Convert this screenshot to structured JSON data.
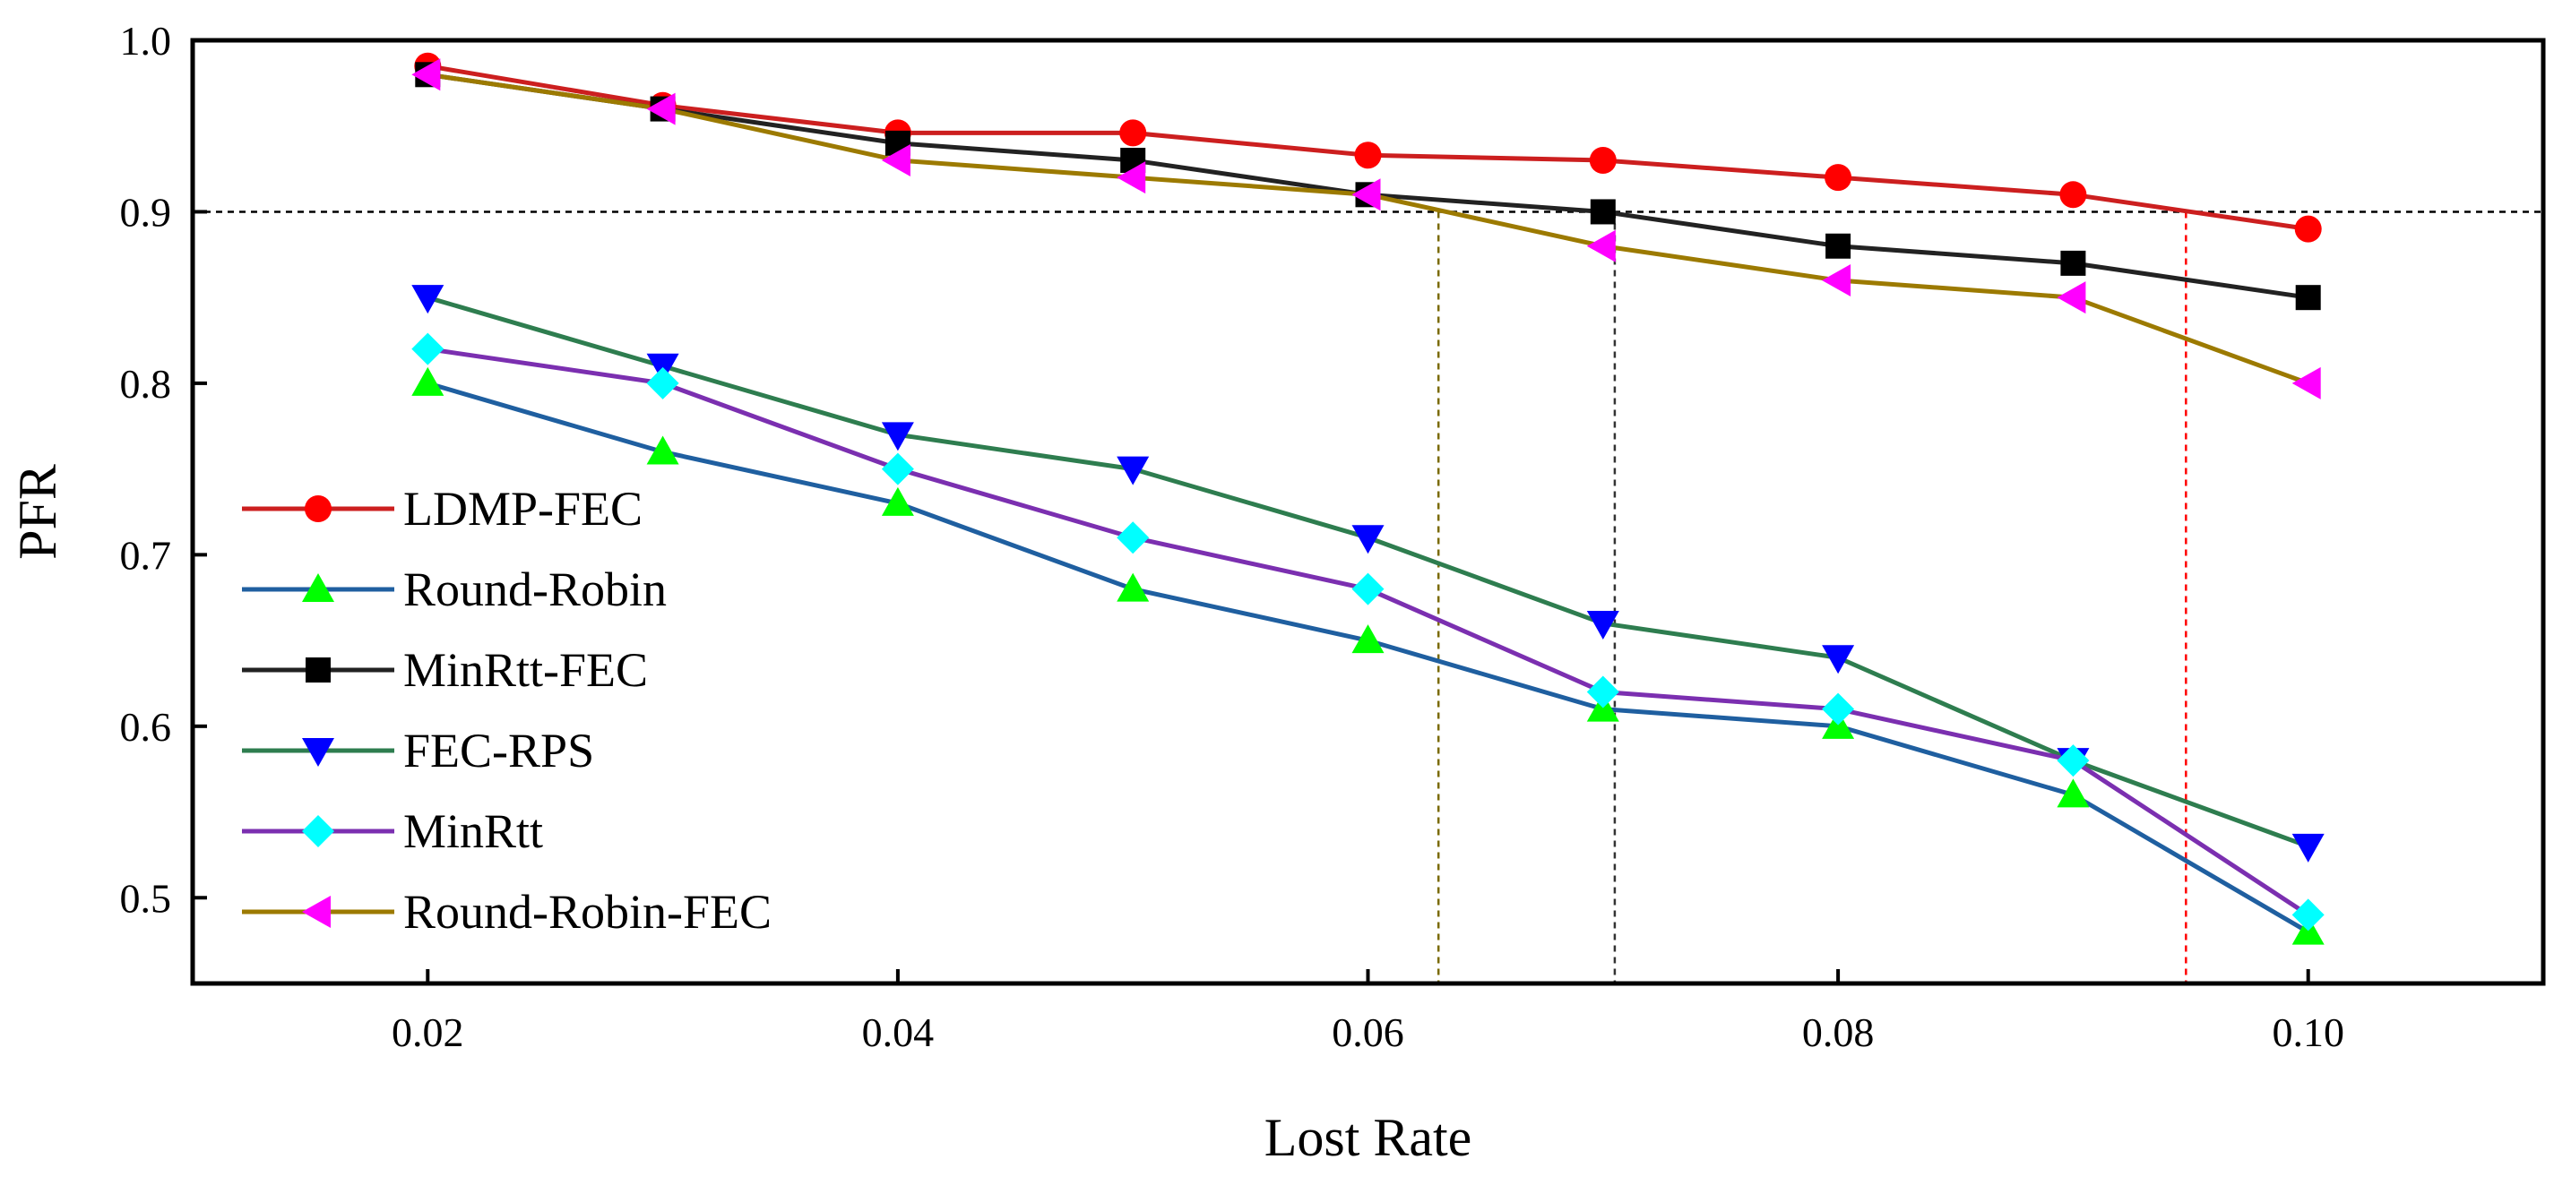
{
  "chart_data": {
    "type": "line",
    "title": "",
    "xlabel": "Lost Rate",
    "ylabel": "PFR",
    "xlim": [
      0.01,
      0.11
    ],
    "ylim": [
      0.45,
      1.0
    ],
    "x": [
      0.02,
      0.03,
      0.04,
      0.05,
      0.06,
      0.07,
      0.08,
      0.09,
      0.1
    ],
    "x_ticks": [
      0.02,
      0.04,
      0.06,
      0.08,
      0.1
    ],
    "x_tick_labels": [
      "0.02",
      "0.04",
      "0.06",
      "0.08",
      "0.10"
    ],
    "y_ticks": [
      0.5,
      0.6,
      0.7,
      0.8,
      0.9,
      1.0
    ],
    "y_tick_labels": [
      "0.5",
      "0.6",
      "0.7",
      "0.8",
      "0.9",
      "1.0"
    ],
    "grid": false,
    "legend_position": "bottom-left",
    "series": [
      {
        "name": "LDMP-FEC",
        "line_color": "#cc1f1f",
        "marker_color": "#ff0000",
        "marker": "circle",
        "values": [
          0.985,
          0.962,
          0.946,
          0.946,
          0.933,
          0.93,
          0.92,
          0.91,
          0.89
        ]
      },
      {
        "name": "Round-Robin",
        "line_color": "#1f5fa0",
        "marker_color": "#00ff00",
        "marker": "triangle-up",
        "values": [
          0.8,
          0.76,
          0.73,
          0.68,
          0.65,
          0.61,
          0.6,
          0.56,
          0.48
        ]
      },
      {
        "name": "MinRtt-FEC",
        "line_color": "#222222",
        "marker_color": "#000000",
        "marker": "square",
        "values": [
          0.98,
          0.96,
          0.94,
          0.93,
          0.91,
          0.9,
          0.88,
          0.87,
          0.85
        ]
      },
      {
        "name": "FEC-RPS",
        "line_color": "#2e7d4f",
        "marker_color": "#0000ff",
        "marker": "triangle-down",
        "values": [
          0.85,
          0.81,
          0.77,
          0.75,
          0.71,
          0.66,
          0.64,
          0.58,
          0.53
        ]
      },
      {
        "name": "MinRtt",
        "line_color": "#7b2fb0",
        "marker_color": "#00ffff",
        "marker": "diamond",
        "values": [
          0.82,
          0.8,
          0.75,
          0.71,
          0.68,
          0.62,
          0.61,
          0.58,
          0.49
        ]
      },
      {
        "name": "Round-Robin-FEC",
        "line_color": "#9c7a00",
        "marker_color": "#ff00ff",
        "marker": "triangle-left",
        "values": [
          0.98,
          0.96,
          0.93,
          0.92,
          0.91,
          0.88,
          0.86,
          0.85,
          0.8
        ]
      }
    ],
    "reference_lines": {
      "horizontal": {
        "y": 0.9,
        "color": "#000000"
      },
      "vertical": [
        {
          "name": "round-robin-fec",
          "x": 0.063,
          "color": "#7a6a00"
        },
        {
          "name": "minrtt-fec",
          "x": 0.0705,
          "color": "#333333"
        },
        {
          "name": "ldmp-fec",
          "x": 0.0948,
          "color": "#ff0000"
        }
      ]
    }
  }
}
